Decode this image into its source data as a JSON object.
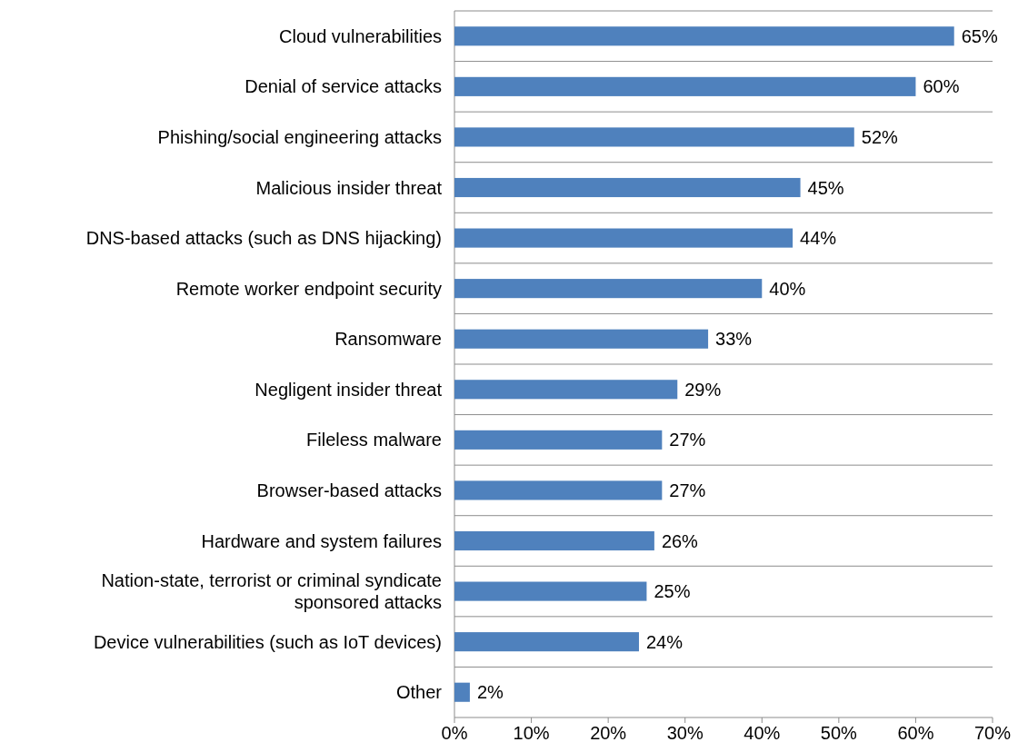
{
  "chart_data": {
    "type": "bar",
    "orientation": "horizontal",
    "categories": [
      "Cloud vulnerabilities",
      "Denial of service attacks",
      "Phishing/social engineering attacks",
      "Malicious insider threat",
      "DNS-based attacks (such as DNS hijacking)",
      "Remote worker endpoint security",
      "Ransomware",
      "Negligent insider threat",
      "Fileless malware",
      "Browser-based attacks",
      "Hardware and system failures",
      "Nation-state, terrorist or criminal syndicate sponsored attacks",
      "Device vulnerabilities (such as IoT devices)",
      "Other"
    ],
    "values": [
      65,
      60,
      52,
      45,
      44,
      40,
      33,
      29,
      27,
      27,
      26,
      25,
      24,
      2
    ],
    "value_labels": [
      "65%",
      "60%",
      "52%",
      "45%",
      "44%",
      "40%",
      "33%",
      "29%",
      "27%",
      "27%",
      "26%",
      "25%",
      "24%",
      "2%"
    ],
    "color": "#4f81bd",
    "xlim": [
      0,
      70
    ],
    "xticks": [
      {
        "value": 0,
        "label": "0%"
      },
      {
        "value": 10,
        "label": "10%"
      },
      {
        "value": 20,
        "label": "20%"
      },
      {
        "value": 30,
        "label": "30%"
      },
      {
        "value": 40,
        "label": "40%"
      },
      {
        "value": 50,
        "label": "50%"
      },
      {
        "value": 60,
        "label": "60%"
      },
      {
        "value": 70,
        "label": "70%"
      }
    ],
    "grid": "y"
  }
}
